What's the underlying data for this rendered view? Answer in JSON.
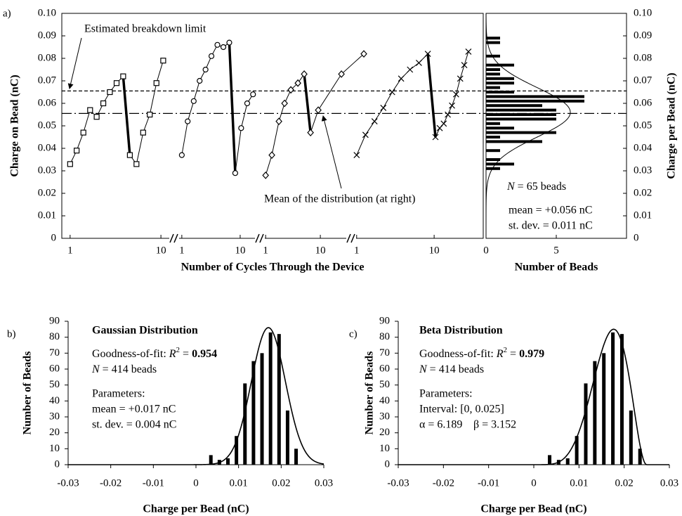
{
  "chart_data": [
    {
      "type": "line",
      "label": "a)",
      "y_label": "Charge on Bead (nC)",
      "x_label": "Number of Cycles Through the Device",
      "x_scale": "log",
      "ylim": [
        0,
        0.1
      ],
      "yticks": [
        0,
        0.01,
        0.02,
        0.03,
        0.04,
        0.05,
        0.06,
        0.07,
        0.08,
        0.09,
        {
          "value": 0.1,
          "label": "0.10"
        }
      ],
      "series": [
        {
          "marker": "square",
          "color": "#000000",
          "xlim": [
            0.81,
            14
          ],
          "xticks": [
            1,
            10
          ],
          "x": [
            1,
            1.18,
            1.4,
            1.66,
            1.96,
            2.32,
            2.74,
            3.25,
            3.84,
            4.55,
            5.38,
            6.37,
            7.54,
            8.93,
            10.6
          ],
          "values": [
            0.033,
            0.039,
            0.047,
            0.057,
            0.054,
            0.06,
            0.065,
            0.069,
            0.072,
            0.037,
            0.033,
            0.047,
            0.055,
            0.069,
            0.079
          ]
        },
        {
          "marker": "circle",
          "color": "#000000",
          "xlim": [
            0.74,
            23
          ],
          "xticks": [
            1,
            10
          ],
          "x": [
            1,
            1.26,
            1.6,
            2.02,
            2.55,
            3.22,
            4.07,
            5.15,
            6.51,
            8.23,
            10.4,
            13.2,
            16.6
          ],
          "values": [
            0.037,
            0.052,
            0.061,
            0.07,
            0.075,
            0.081,
            0.086,
            0.085,
            0.087,
            0.029,
            0.049,
            0.06,
            0.064
          ]
        },
        {
          "marker": "diamond",
          "color": "#000000",
          "xlim": [
            0.74,
            79
          ],
          "xticks": [
            1,
            10
          ],
          "x": [
            1,
            1.3,
            1.75,
            2.22,
            2.89,
            3.89,
            5.07,
            6.62,
            9.16,
            24.3,
            62.4
          ],
          "values": [
            0.028,
            0.037,
            0.052,
            0.06,
            0.066,
            0.069,
            0.073,
            0.047,
            0.057,
            0.073,
            0.082
          ]
        },
        {
          "marker": "cross",
          "color": "#000000",
          "xlim": [
            0.85,
            43
          ],
          "xticks": [
            1,
            10
          ],
          "x": [
            1,
            1.3,
            1.7,
            2.21,
            2.87,
            3.75,
            4.88,
            6.36,
            8.29,
            10.4,
            11.8,
            13.3,
            15,
            17,
            19.2,
            21.7,
            24.5,
            27.7
          ],
          "values": [
            0.037,
            0.046,
            0.052,
            0.058,
            0.065,
            0.071,
            0.075,
            0.078,
            0.082,
            0.045,
            0.049,
            0.051,
            0.055,
            0.059,
            0.064,
            0.071,
            0.077,
            0.083
          ]
        }
      ],
      "reference_lines": [
        {
          "value": 0.0655,
          "style": "dashed"
        },
        {
          "value": 0.0555,
          "style": "dashdot"
        }
      ],
      "annotations": [
        "Estimated breakdown limit",
        "Mean of the distribution (at right)"
      ]
    },
    {
      "type": "barh",
      "y_label": "Charge per Bead (nC)",
      "x_label": "Number of Beads",
      "ylim": [
        0,
        0.1
      ],
      "yticks": [
        0,
        0.01,
        0.02,
        0.03,
        0.04,
        0.05,
        0.06,
        0.07,
        0.08,
        0.09,
        {
          "value": 0.1,
          "label": "0.10"
        }
      ],
      "xlim": [
        0,
        10
      ],
      "xticks": [
        0,
        5
      ],
      "y": [
        0.031,
        0.033,
        0.035,
        0.037,
        0.039,
        0.041,
        0.043,
        0.045,
        0.047,
        0.049,
        0.051,
        0.053,
        0.055,
        0.057,
        0.059,
        0.061,
        0.063,
        0.065,
        0.067,
        0.069,
        0.071,
        0.073,
        0.075,
        0.077,
        0.079,
        0.081,
        0.083,
        0.085,
        0.087,
        0.089
      ],
      "values": [
        1,
        2,
        1,
        0,
        1,
        0,
        4,
        1,
        5,
        2,
        1,
        5,
        5,
        5,
        4,
        7,
        7,
        2,
        1,
        2,
        2,
        1,
        1,
        2,
        0,
        1,
        0,
        0,
        1,
        1
      ],
      "color": "#000000",
      "fit": {
        "kind": "gaussian",
        "mean": 0.056,
        "sd": 0.011,
        "peak": 6
      },
      "notes": [
        [
          "N",
          " = 65 beads"
        ],
        [
          "mean = +0.056 nC"
        ],
        [
          "st. dev. = 0.011 nC"
        ]
      ]
    },
    {
      "type": "bar",
      "label": "b)",
      "y_label": "Number of Beads",
      "x_label": "Charge per Bead (nC)",
      "xlim": [
        -0.03,
        0.03
      ],
      "xticks": [
        -0.03,
        -0.02,
        -0.01,
        0,
        0.01,
        0.02,
        0.03
      ],
      "ylim": [
        0,
        90
      ],
      "yticks": [
        0,
        10,
        20,
        30,
        40,
        50,
        60,
        70,
        80,
        90
      ],
      "x": [
        0.0035,
        0.0055,
        0.0075,
        0.0095,
        0.0115,
        0.0135,
        0.0155,
        0.0175,
        0.0195,
        0.0215,
        0.0235
      ],
      "values": [
        6,
        3,
        4,
        18,
        51,
        65,
        70,
        83,
        82,
        34,
        10
      ],
      "color": "#000000",
      "fit": {
        "kind": "gaussian",
        "mean": 0.017,
        "sd": 0.004,
        "peak": 86
      },
      "notes": [
        [
          "Gaussian Distribution"
        ],
        [
          "Goodness-of-fit: ",
          "R",
          "2",
          " = ",
          "0.954"
        ],
        [
          "N",
          " = 414 beads"
        ],
        [
          "Parameters:"
        ],
        [
          "mean = +0.017 nC"
        ],
        [
          "st. dev. = 0.004 nC"
        ]
      ]
    },
    {
      "type": "bar",
      "label": "c)",
      "y_label": "Number of Beads",
      "x_label": "Charge per Bead (nC)",
      "xlim": [
        -0.03,
        0.03
      ],
      "xticks": [
        -0.03,
        -0.02,
        -0.01,
        0,
        0.01,
        0.02,
        0.03
      ],
      "ylim": [
        0,
        90
      ],
      "yticks": [
        0,
        10,
        20,
        30,
        40,
        50,
        60,
        70,
        80,
        90
      ],
      "x": [
        0.0035,
        0.0055,
        0.0075,
        0.0095,
        0.0115,
        0.0135,
        0.0155,
        0.0175,
        0.0195,
        0.0215,
        0.0235
      ],
      "values": [
        6,
        3,
        4,
        18,
        51,
        65,
        70,
        83,
        82,
        34,
        10
      ],
      "color": "#000000",
      "fit": {
        "kind": "beta",
        "interval": [
          0,
          0.025
        ],
        "alpha": 6.189,
        "beta": 3.152,
        "peak": 85
      },
      "notes": [
        [
          "Beta Distribution"
        ],
        [
          "Goodness-of-fit: ",
          "R",
          "2",
          " = ",
          "0.979"
        ],
        [
          "N",
          " = 414 beads"
        ],
        [
          "Parameters:"
        ],
        [
          "Interval: [0, 0.025]"
        ],
        [
          "α = 6.189",
          "β = 3.152"
        ]
      ]
    }
  ]
}
